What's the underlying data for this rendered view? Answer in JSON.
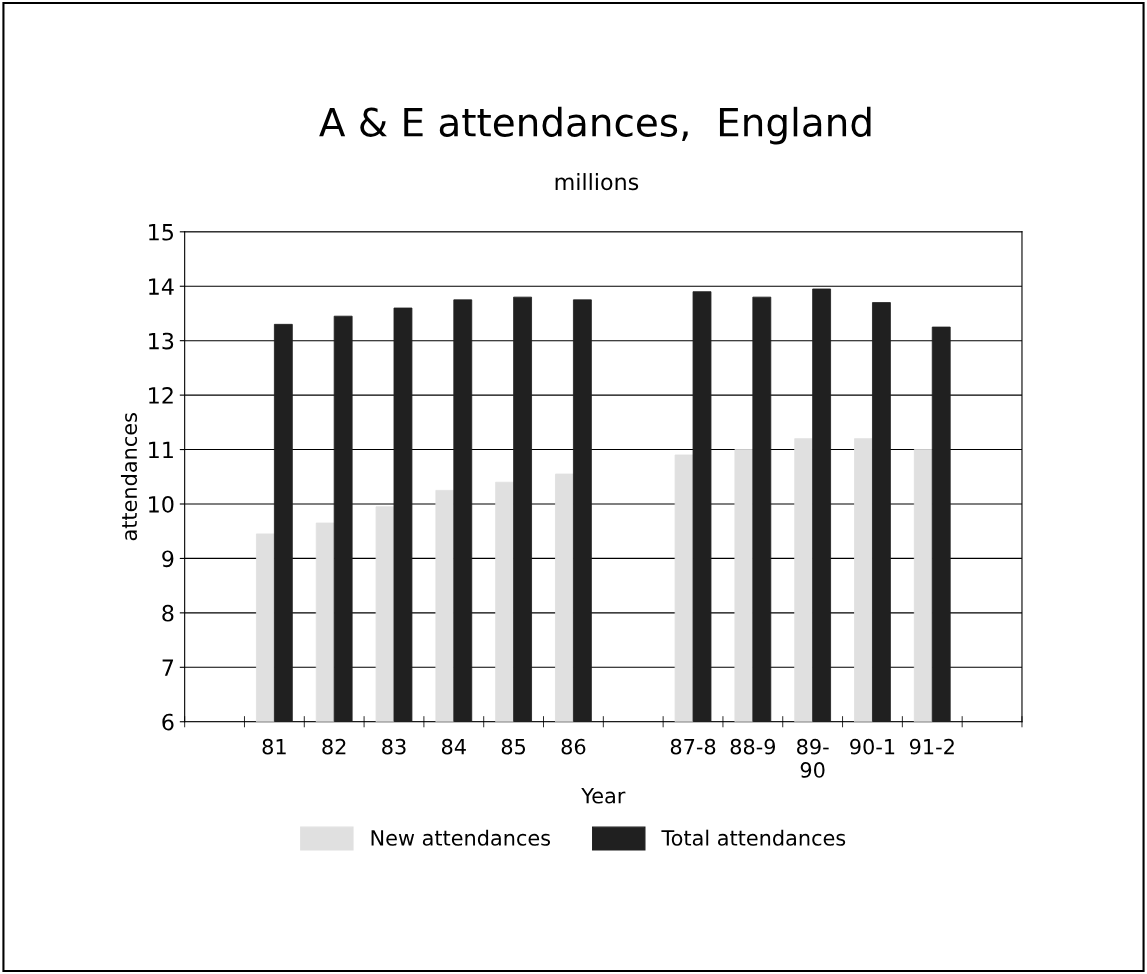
{
  "chart_data": {
    "type": "bar",
    "title": "A & E attendances,  England",
    "subtitle": "millions",
    "xlabel": "Year",
    "ylabel": "attendances",
    "categories": [
      null,
      "81",
      "82",
      "83",
      "84",
      "85",
      "86",
      null,
      "87-8",
      "88-9",
      "89-\n90",
      "90-1",
      "91-2",
      null
    ],
    "series": [
      {
        "name": "New attendances",
        "color": "#e0e0e0",
        "values": [
          null,
          9.45,
          9.65,
          9.95,
          10.25,
          10.4,
          10.55,
          null,
          10.9,
          11.0,
          11.2,
          11.2,
          11.0,
          null
        ]
      },
      {
        "name": "Total attendances",
        "color": "#202020",
        "values": [
          null,
          13.3,
          13.45,
          13.6,
          13.75,
          13.8,
          13.75,
          null,
          13.9,
          13.8,
          13.95,
          13.7,
          13.25,
          null
        ]
      }
    ],
    "ylim": [
      6,
      15
    ],
    "yticks": [
      6,
      7,
      8,
      9,
      10,
      11,
      12,
      13,
      14,
      15
    ],
    "grid": "y",
    "legend": "bottom"
  }
}
